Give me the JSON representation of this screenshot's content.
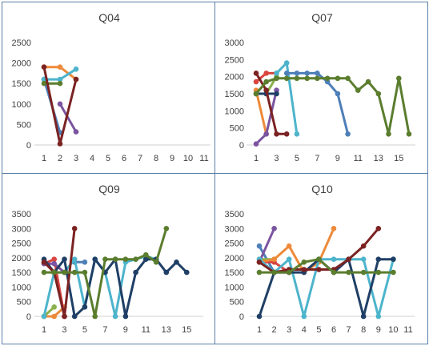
{
  "chart_data": [
    {
      "type": "line",
      "title": "Q04",
      "ylim": [
        0,
        2500
      ],
      "yticks": [
        "0",
        "500",
        "1000",
        "1500",
        "2000",
        "2500"
      ],
      "xticks": [
        "1",
        "2",
        "3",
        "4",
        "5",
        "6",
        "7",
        "8",
        "9",
        "10",
        "11"
      ],
      "xmax": 11,
      "series": [
        {
          "color": "#4e7fb8",
          "points": [
            [
              1,
              1600
            ],
            [
              2,
              300
            ]
          ]
        },
        {
          "color": "#ed8a3a",
          "points": [
            [
              1,
              1900
            ],
            [
              2,
              1900
            ],
            [
              3,
              1600
            ]
          ]
        },
        {
          "color": "#4db4cc",
          "points": [
            [
              1,
              1600
            ],
            [
              2,
              1600
            ],
            [
              3,
              1850
            ]
          ]
        },
        {
          "color": "#7b54a0",
          "points": [
            [
              2,
              1000
            ],
            [
              3,
              320
            ]
          ]
        },
        {
          "color": "#5b7d2e",
          "points": [
            [
              1,
              1500
            ],
            [
              2,
              1500
            ]
          ]
        },
        {
          "color": "#7b2222",
          "points": [
            [
              1,
              1900
            ],
            [
              2,
              30
            ],
            [
              3,
              1600
            ]
          ]
        }
      ]
    },
    {
      "type": "line",
      "title": "Q07",
      "ylim": [
        0,
        3000
      ],
      "yticks": [
        "0",
        "500",
        "1000",
        "1500",
        "2000",
        "2500",
        "3000"
      ],
      "xticks": [
        "1",
        "3",
        "5",
        "7",
        "9",
        "11",
        "13",
        "15"
      ],
      "xmax": 16,
      "series": [
        {
          "color": "#d9453f",
          "points": [
            [
              1,
              1850
            ],
            [
              2,
              2100
            ],
            [
              3,
              2100
            ]
          ]
        },
        {
          "color": "#ed8a3a",
          "points": [
            [
              1,
              1600
            ],
            [
              2,
              320
            ]
          ]
        },
        {
          "color": "#8bb04e",
          "points": [
            [
              1,
              1500
            ],
            [
              2,
              1500
            ],
            [
              3,
              2000
            ]
          ]
        },
        {
          "color": "#7b54a0",
          "points": [
            [
              1,
              30
            ],
            [
              2,
              320
            ],
            [
              3,
              1600
            ]
          ]
        },
        {
          "color": "#1f3f66",
          "points": [
            [
              1,
              1500
            ],
            [
              2,
              1500
            ],
            [
              3,
              1500
            ]
          ]
        },
        {
          "color": "#4db4cc",
          "points": [
            [
              3,
              2100
            ],
            [
              4,
              2400
            ],
            [
              5,
              320
            ]
          ]
        },
        {
          "color": "#4e7fb8",
          "points": [
            [
              4,
              2100
            ],
            [
              5,
              2100
            ],
            [
              6,
              2100
            ],
            [
              7,
              2100
            ],
            [
              8,
              1850
            ],
            [
              9,
              1500
            ],
            [
              10,
              320
            ]
          ]
        },
        {
          "color": "#7b2222",
          "points": [
            [
              1,
              2100
            ],
            [
              2,
              1600
            ],
            [
              3,
              320
            ],
            [
              4,
              320
            ]
          ]
        },
        {
          "color": "#5b7d2e",
          "points": [
            [
              1,
              1500
            ],
            [
              2,
              1850
            ],
            [
              3,
              1950
            ],
            [
              4,
              1950
            ],
            [
              5,
              1950
            ],
            [
              6,
              1950
            ],
            [
              7,
              1950
            ],
            [
              8,
              1950
            ],
            [
              9,
              1950
            ],
            [
              10,
              1950
            ],
            [
              11,
              1600
            ],
            [
              12,
              1850
            ],
            [
              13,
              1500
            ],
            [
              14,
              320
            ],
            [
              15,
              1950
            ],
            [
              16,
              320
            ]
          ]
        }
      ]
    },
    {
      "type": "line",
      "title": "Q09",
      "ylim": [
        0,
        3500
      ],
      "yticks": [
        "0",
        "500",
        "1000",
        "1500",
        "2000",
        "2500",
        "3000",
        "3500"
      ],
      "xticks": [
        "1",
        "3",
        "5",
        "7",
        "9",
        "11",
        "13",
        "15"
      ],
      "xmax": 16,
      "series": [
        {
          "color": "#ed8a3a",
          "points": [
            [
              1,
              0
            ],
            [
              2,
              0
            ],
            [
              3,
              320
            ]
          ]
        },
        {
          "color": "#8bb04e",
          "points": [
            [
              1,
              0
            ],
            [
              2,
              320
            ]
          ]
        },
        {
          "color": "#d9453f",
          "points": [
            [
              1,
              1800
            ],
            [
              2,
              1950
            ],
            [
              3,
              0
            ]
          ]
        },
        {
          "color": "#7b54a0",
          "points": [
            [
              1,
              1800
            ],
            [
              2,
              1800
            ],
            [
              3,
              1500
            ]
          ]
        },
        {
          "color": "#4e7fb8",
          "points": [
            [
              4,
              1850
            ],
            [
              5,
              1850
            ]
          ]
        },
        {
          "color": "#4db4cc",
          "points": [
            [
              1,
              0
            ],
            [
              2,
              1500
            ],
            [
              3,
              1500
            ],
            [
              4,
              1950
            ],
            [
              5,
              320
            ],
            [
              6,
              1950
            ],
            [
              7,
              1500
            ],
            [
              8,
              0
            ],
            [
              9,
              1850
            ],
            [
              10,
              1950
            ],
            [
              11,
              2050
            ],
            [
              12,
              1950
            ]
          ]
        },
        {
          "color": "#1f3f66",
          "points": [
            [
              1,
              1950
            ],
            [
              2,
              1500
            ],
            [
              3,
              1950
            ],
            [
              4,
              0
            ],
            [
              5,
              320
            ],
            [
              6,
              1950
            ],
            [
              7,
              1500
            ],
            [
              8,
              1950
            ],
            [
              9,
              0
            ],
            [
              10,
              1500
            ],
            [
              11,
              1950
            ],
            [
              12,
              1950
            ],
            [
              13,
              1500
            ],
            [
              14,
              1850
            ],
            [
              15,
              1500
            ]
          ]
        },
        {
          "color": "#7b2222",
          "points": [
            [
              1,
              1850
            ],
            [
              2,
              1500
            ],
            [
              3,
              0
            ],
            [
              4,
              3000
            ]
          ]
        },
        {
          "color": "#5b7d2e",
          "points": [
            [
              1,
              1500
            ],
            [
              2,
              1500
            ],
            [
              3,
              1500
            ],
            [
              4,
              1500
            ],
            [
              5,
              1500
            ],
            [
              6,
              0
            ],
            [
              7,
              1950
            ],
            [
              8,
              1950
            ],
            [
              9,
              1950
            ],
            [
              10,
              1950
            ],
            [
              11,
              2100
            ],
            [
              12,
              1850
            ],
            [
              13,
              3000
            ]
          ]
        }
      ]
    },
    {
      "type": "line",
      "title": "Q10",
      "ylim": [
        0,
        3500
      ],
      "yticks": [
        "0",
        "500",
        "1000",
        "1500",
        "2000",
        "2500",
        "3000",
        "3500"
      ],
      "xticks": [
        "1",
        "2",
        "3",
        "4",
        "5",
        "6",
        "7",
        "8",
        "9",
        "10",
        "11"
      ],
      "xmax": 11,
      "series": [
        {
          "color": "#4e7fb8",
          "points": [
            [
              1,
              2400
            ],
            [
              2,
              1500
            ]
          ]
        },
        {
          "color": "#8bb04e",
          "points": [
            [
              1,
              1950
            ],
            [
              2,
              1950
            ]
          ]
        },
        {
          "color": "#7b54a0",
          "points": [
            [
              1,
              1850
            ],
            [
              2,
              3000
            ]
          ]
        },
        {
          "color": "#d9453f",
          "points": [
            [
              1,
              1850
            ],
            [
              2,
              1850
            ],
            [
              3,
              1500
            ]
          ]
        },
        {
          "color": "#ed8a3a",
          "points": [
            [
              1,
              1850
            ],
            [
              2,
              1950
            ],
            [
              3,
              2400
            ],
            [
              4,
              1500
            ],
            [
              5,
              1850
            ],
            [
              6,
              3000
            ]
          ]
        },
        {
          "color": "#4db4cc",
          "points": [
            [
              1,
              1950
            ],
            [
              2,
              1500
            ],
            [
              3,
              1950
            ],
            [
              4,
              0
            ],
            [
              5,
              1950
            ],
            [
              6,
              1950
            ],
            [
              7,
              1950
            ],
            [
              8,
              1950
            ],
            [
              9,
              0
            ],
            [
              10,
              1950
            ]
          ]
        },
        {
          "color": "#1f3f66",
          "points": [
            [
              1,
              0
            ],
            [
              2,
              1500
            ],
            [
              3,
              1500
            ],
            [
              4,
              1500
            ],
            [
              5,
              1950
            ],
            [
              6,
              1500
            ],
            [
              7,
              1950
            ],
            [
              8,
              0
            ],
            [
              9,
              1950
            ],
            [
              10,
              1950
            ]
          ]
        },
        {
          "color": "#7b2222",
          "points": [
            [
              1,
              1850
            ],
            [
              2,
              1500
            ],
            [
              3,
              1600
            ],
            [
              4,
              1600
            ],
            [
              5,
              1600
            ],
            [
              6,
              1600
            ],
            [
              7,
              1950
            ],
            [
              8,
              2400
            ],
            [
              9,
              3000
            ]
          ]
        },
        {
          "color": "#5b7d2e",
          "points": [
            [
              1,
              1500
            ],
            [
              2,
              1500
            ],
            [
              3,
              1500
            ],
            [
              4,
              1850
            ],
            [
              5,
              1950
            ],
            [
              6,
              1500
            ],
            [
              7,
              1500
            ],
            [
              8,
              1500
            ],
            [
              9,
              1500
            ],
            [
              10,
              1500
            ]
          ]
        }
      ]
    }
  ]
}
